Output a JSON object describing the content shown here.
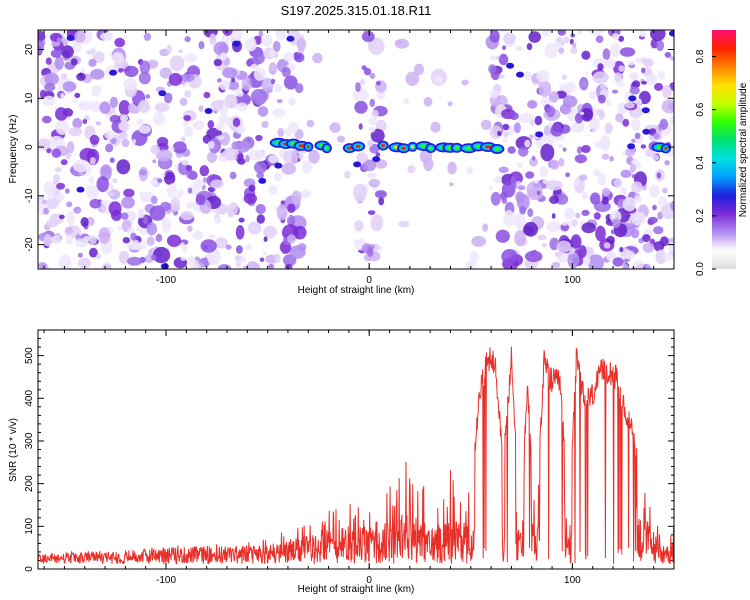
{
  "title": "S197.2025.315.01.18.R11",
  "colors": {
    "snr_line": "#e8302a",
    "axis": "#000000",
    "accent": "#7a2bd6"
  },
  "colorbar_stops": [
    "#dddddd",
    "#ffffff",
    "#b08cf0",
    "#7a2bd6",
    "#2020e0",
    "#00a0ff",
    "#00e0e0",
    "#00e070",
    "#30ff00",
    "#c8ff00",
    "#ffe000",
    "#ff8000",
    "#ff2000",
    "#ff1070"
  ],
  "chart_data": [
    {
      "type": "heatmap",
      "title": "S197.2025.315.01.18.R11",
      "xlabel": "Height of straight line (km)",
      "ylabel": "Frequency (Hz)",
      "xlim": [
        -163,
        150
      ],
      "ylim": [
        -25,
        24
      ],
      "xticks": [
        -100,
        0,
        100
      ],
      "yticks": [
        -20,
        -10,
        0,
        10,
        20
      ],
      "colorbar": {
        "label": "Normalized spectral amplitude",
        "range": [
          0,
          0.9
        ],
        "ticks": [
          0,
          0.2,
          0.4,
          0.6,
          0.8
        ],
        "tick_labels": [
          "0.0",
          "0.2",
          "0.4",
          "0.6",
          "0.8"
        ]
      },
      "signal_ridge_hz": 0,
      "signal_segments_km": [
        [
          -48,
          -20
        ],
        [
          -12,
          -6
        ],
        [
          5,
          62
        ],
        [
          140,
          148
        ]
      ],
      "empty_gaps_km": [
        [
          -33,
          -6
        ],
        [
          6,
          60
        ]
      ]
    },
    {
      "type": "line",
      "xlabel": "Height of straight line (km)",
      "ylabel": "SNR (10 * v/v)",
      "xlim": [
        -163,
        150
      ],
      "ylim": [
        0,
        560
      ],
      "xticks": [
        -100,
        0,
        100
      ],
      "yticks": [
        0,
        100,
        200,
        300,
        400,
        500
      ],
      "series": [
        {
          "name": "SNR",
          "x": [
            -163,
            -150,
            -140,
            -130,
            -120,
            -110,
            -100,
            -90,
            -80,
            -70,
            -60,
            -50,
            -40,
            -32,
            -24,
            -18,
            -12,
            -8,
            -4,
            0,
            5,
            10,
            18,
            22,
            26,
            30,
            35,
            40,
            45,
            50,
            54,
            58,
            62,
            66,
            70,
            74,
            78,
            82,
            86,
            90,
            94,
            98,
            102,
            106,
            110,
            114,
            118,
            122,
            126,
            130,
            134,
            138,
            142,
            146,
            150
          ],
          "values": [
            22,
            28,
            32,
            35,
            40,
            45,
            52,
            55,
            60,
            62,
            65,
            68,
            85,
            110,
            125,
            145,
            160,
            160,
            170,
            150,
            135,
            180,
            240,
            225,
            195,
            155,
            200,
            215,
            215,
            150,
            420,
            510,
            520,
            255,
            520,
            110,
            440,
            120,
            505,
            460,
            460,
            130,
            515,
            410,
            430,
            480,
            495,
            465,
            385,
            340,
            215,
            190,
            95,
            60,
            95
          ]
        }
      ]
    }
  ]
}
